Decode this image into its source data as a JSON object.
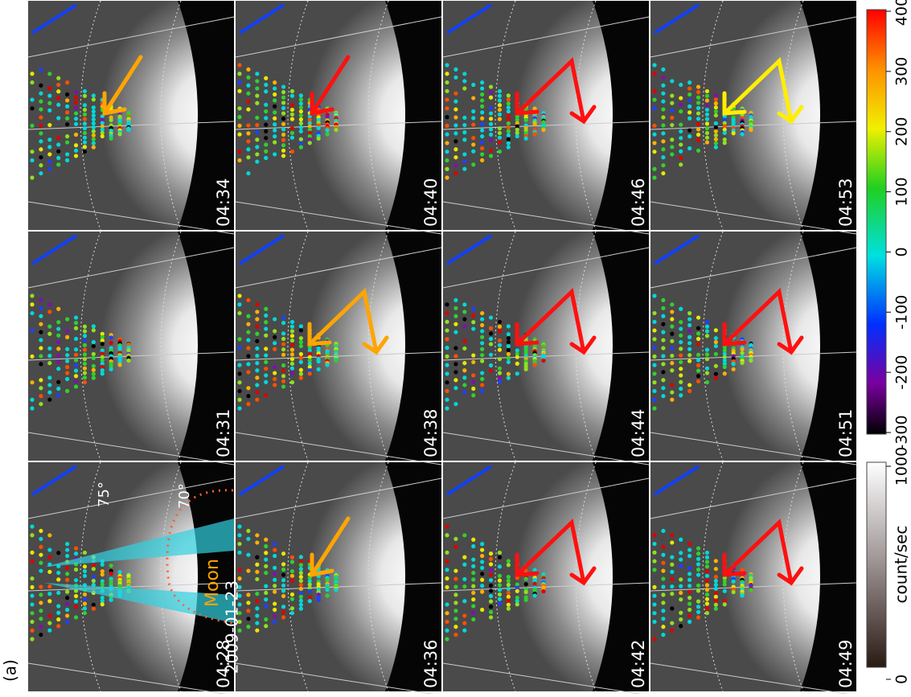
{
  "figure_label": "(a)",
  "panels": [
    {
      "time": "04:28"
    },
    {
      "time": "04:31"
    },
    {
      "time": "04:34"
    },
    {
      "time": "04:36"
    },
    {
      "time": "04:38"
    },
    {
      "time": "04:40"
    },
    {
      "time": "04:42"
    },
    {
      "time": "04:44"
    },
    {
      "time": "04:46"
    },
    {
      "time": "04:49"
    },
    {
      "time": "04:51"
    },
    {
      "time": "04:53"
    }
  ],
  "annotations": {
    "date": "2009-01-23",
    "lat_75": "75°",
    "lat_70": "70°",
    "moon": "Moon"
  },
  "gray_colorbar": {
    "label": "count/sec",
    "ticks": [
      0,
      1000
    ]
  },
  "color_colorbar": {
    "ticks": [
      -300,
      -200,
      -100,
      0,
      100,
      200,
      300,
      400
    ]
  }
}
